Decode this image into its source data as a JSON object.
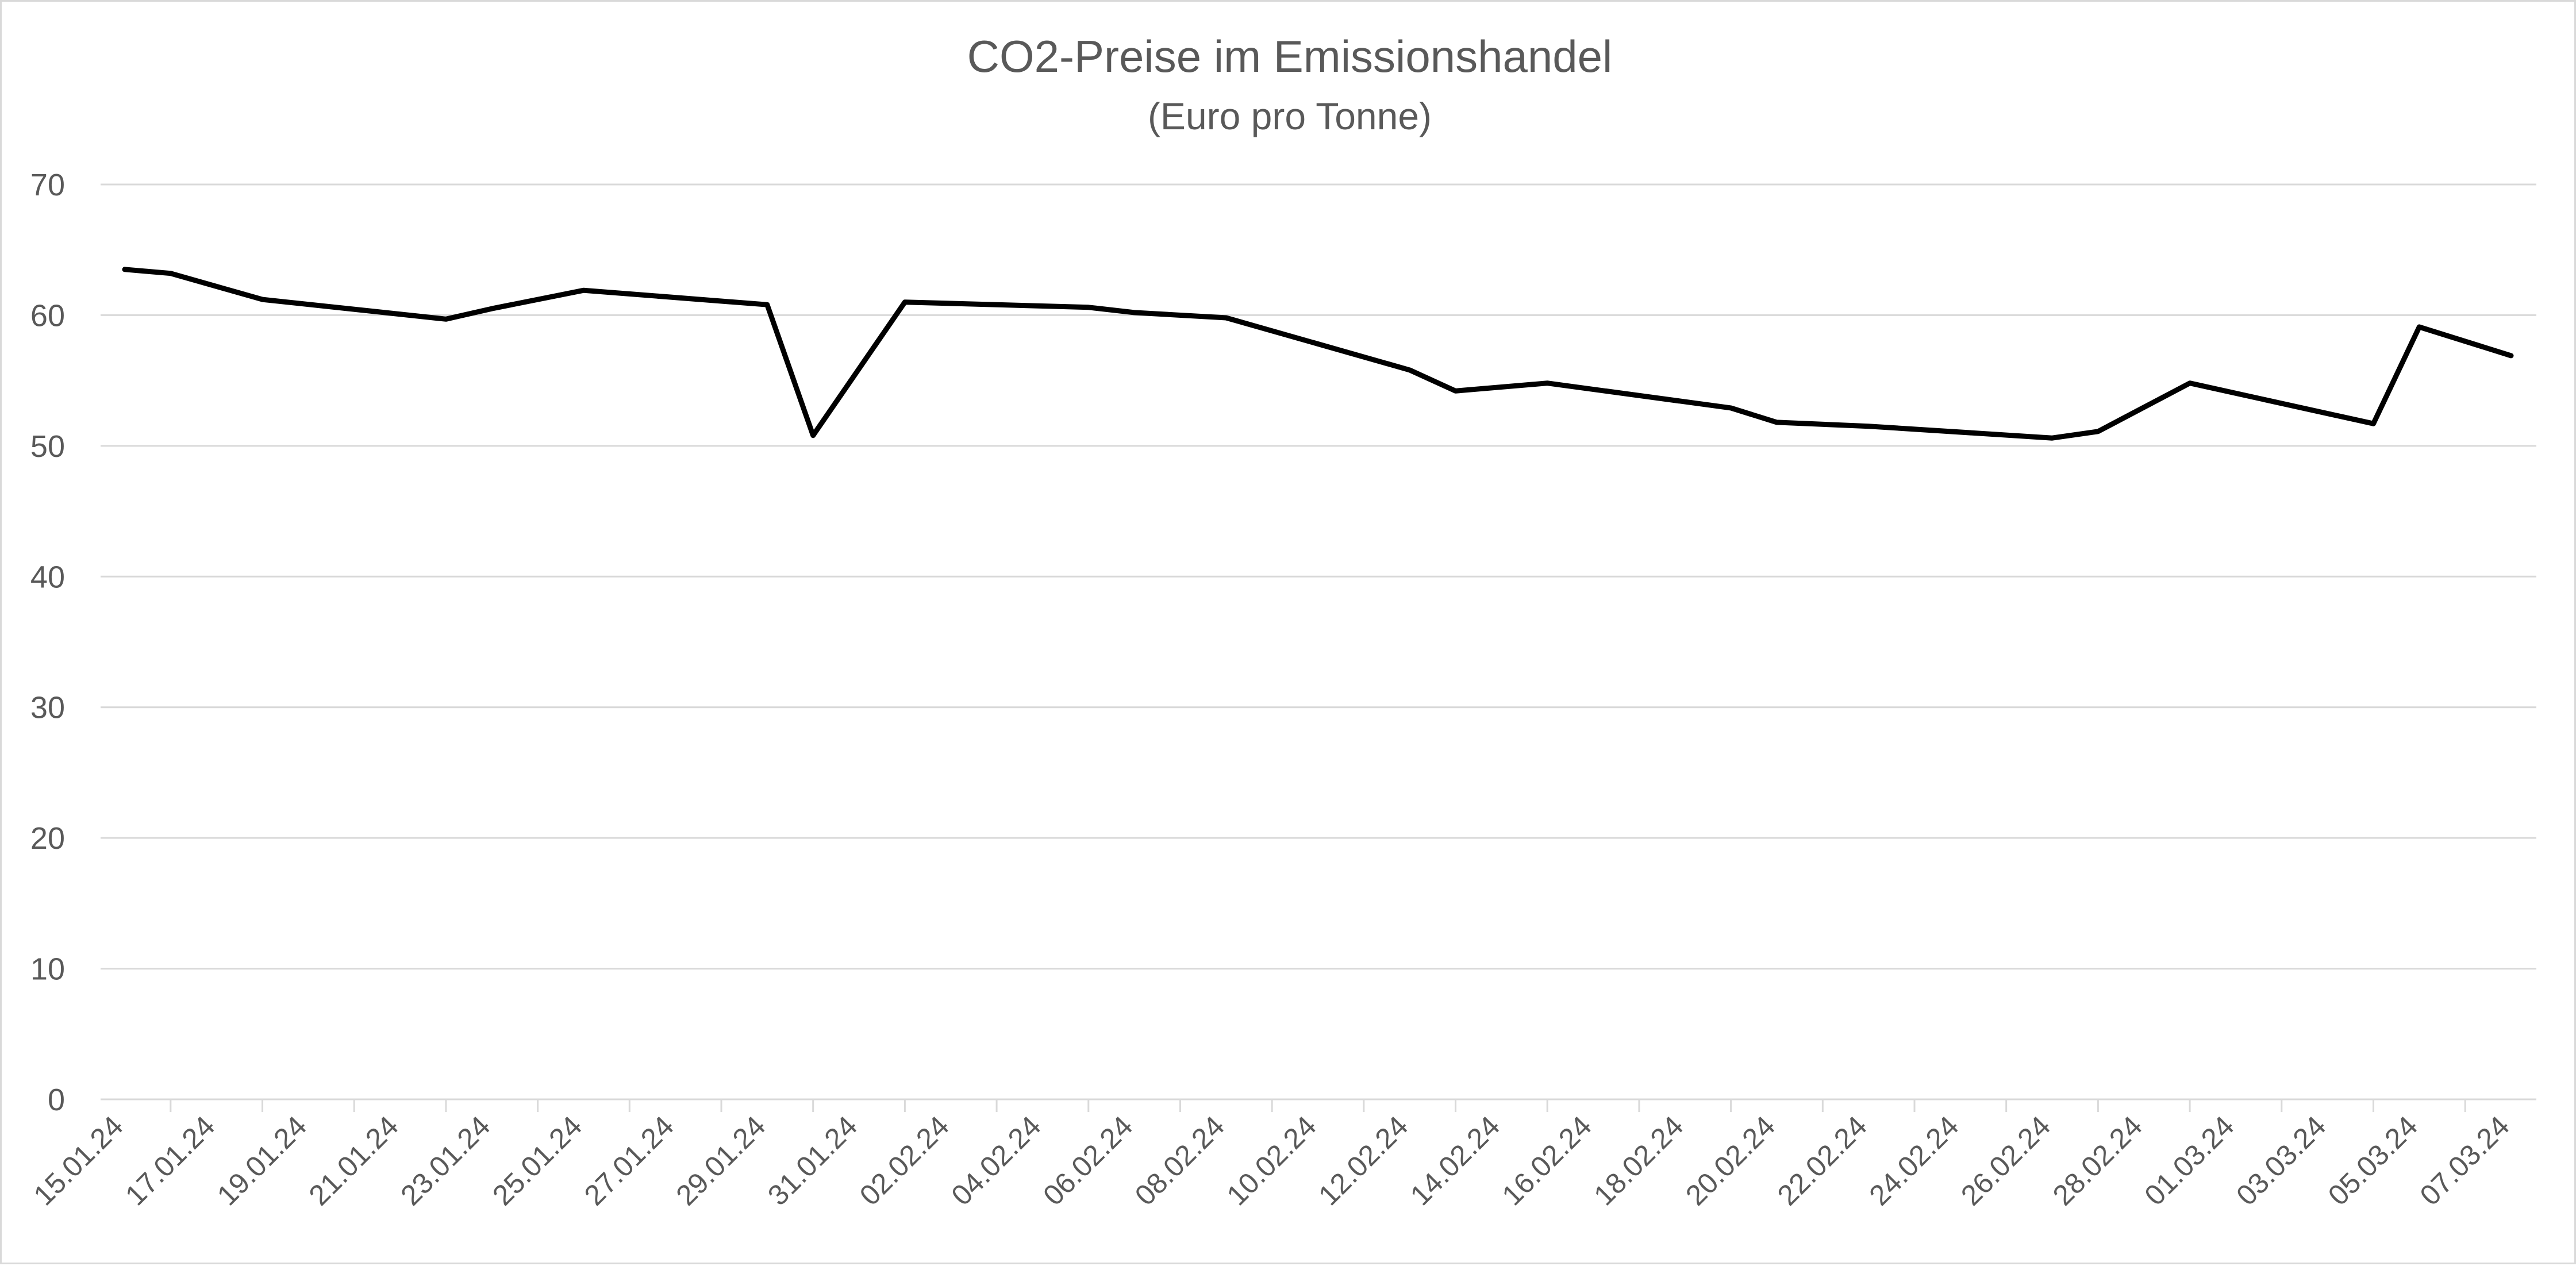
{
  "chart_data": {
    "type": "line",
    "title": "CO2-Preise im Emissionshandel",
    "subtitle": "(Euro pro Tonne)",
    "xlabel": "",
    "ylabel": "",
    "ylim": [
      0,
      70
    ],
    "y_ticks": [
      "0",
      "10",
      "20",
      "30",
      "40",
      "50",
      "60",
      "70"
    ],
    "x_tick_labels": [
      "15.01.24",
      "17.01.24",
      "19.01.24",
      "21.01.24",
      "23.01.24",
      "25.01.24",
      "27.01.24",
      "29.01.24",
      "31.01.24",
      "02.02.24",
      "04.02.24",
      "06.02.24",
      "08.02.24",
      "10.02.24",
      "12.02.24",
      "14.02.24",
      "16.02.24",
      "18.02.24",
      "20.02.24",
      "22.02.24",
      "24.02.24",
      "26.02.24",
      "28.02.24",
      "01.03.24",
      "03.03.24",
      "05.03.24",
      "07.03.24"
    ],
    "x_range": [
      "15.01.24",
      "07.03.24"
    ],
    "grid": true,
    "legend": "none",
    "series_color": "#000000",
    "series": [
      {
        "x": [
          "15.01.24",
          "16.01.24",
          "18.01.24",
          "22.01.24",
          "23.01.24",
          "25.01.24",
          "29.01.24",
          "30.01.24",
          "01.02.24",
          "05.02.24",
          "06.02.24",
          "08.02.24",
          "12.02.24",
          "13.02.24",
          "15.02.24",
          "19.02.24",
          "20.02.24",
          "22.02.24",
          "26.02.24",
          "27.02.24",
          "29.02.24",
          "04.03.24",
          "05.03.24",
          "07.03.24"
        ],
        "values": [
          63.5,
          63.2,
          61.2,
          59.7,
          60.5,
          61.9,
          60.8,
          50.8,
          61.0,
          60.6,
          60.2,
          59.8,
          55.8,
          54.2,
          54.8,
          52.9,
          51.8,
          51.5,
          50.6,
          51.1,
          54.8,
          51.7,
          59.1,
          56.9
        ]
      }
    ]
  }
}
